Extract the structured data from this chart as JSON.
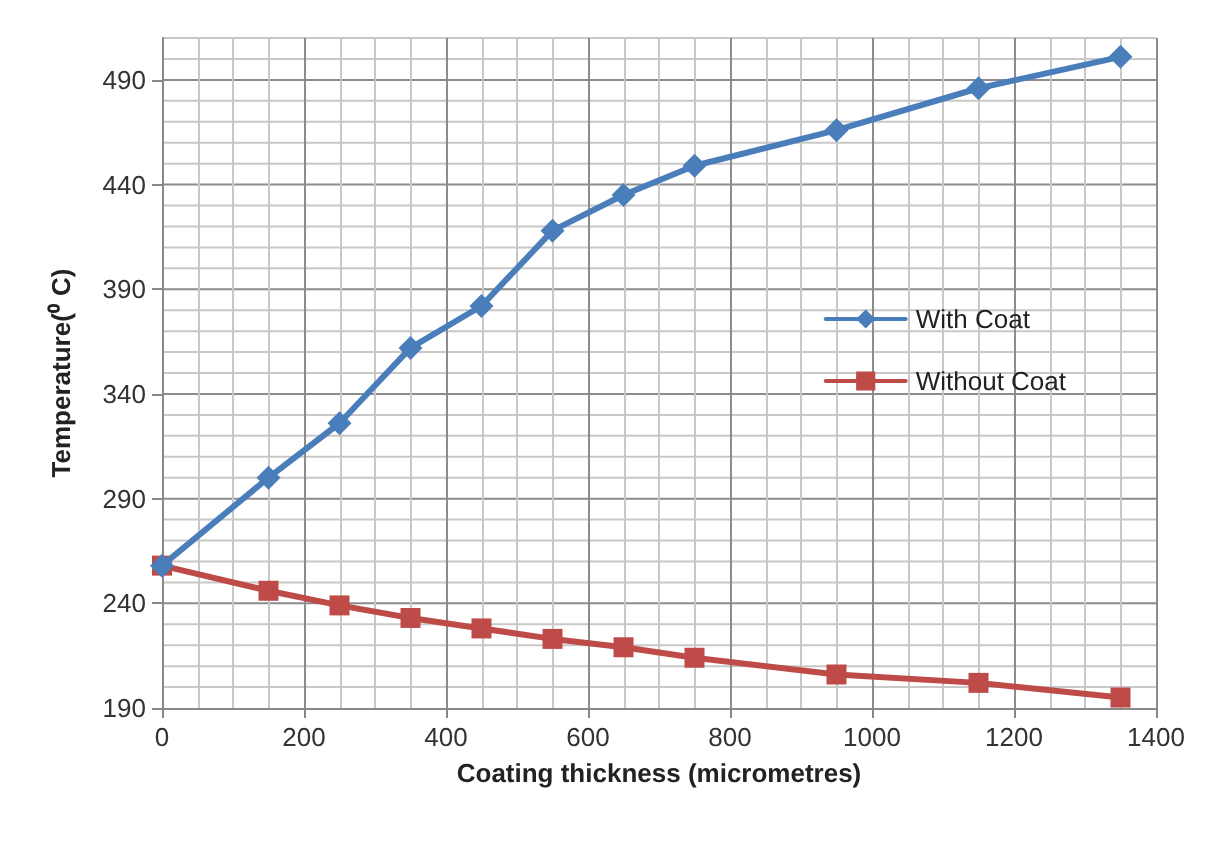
{
  "chart_data": {
    "type": "line",
    "xlabel": "Coating thickness (micrometres)",
    "ylabel": "Temperature(⁰ C)",
    "xlim": [
      0,
      1400
    ],
    "xticks": [
      0,
      200,
      400,
      600,
      800,
      1000,
      1200,
      1400
    ],
    "ylim": [
      190,
      510
    ],
    "yticks": [
      190,
      240,
      290,
      340,
      390,
      440,
      490
    ],
    "grid": true,
    "legend": "right",
    "line_style": "solid",
    "series": [
      {
        "name": "With Coat",
        "color": "#4a7ebb",
        "marker": "diamond",
        "x": [
          0,
          150,
          250,
          350,
          450,
          550,
          650,
          750,
          950,
          1150,
          1350
        ],
        "values": [
          258,
          300,
          326,
          362,
          382,
          418,
          435,
          449,
          466,
          486,
          501
        ]
      },
      {
        "name": "Without Coat",
        "color": "#be4b48",
        "marker": "square",
        "x": [
          0,
          150,
          250,
          350,
          450,
          550,
          650,
          750,
          950,
          1150,
          1350
        ],
        "values": [
          258,
          246,
          239,
          233,
          228,
          223,
          219,
          214,
          206,
          202,
          195
        ]
      }
    ]
  }
}
